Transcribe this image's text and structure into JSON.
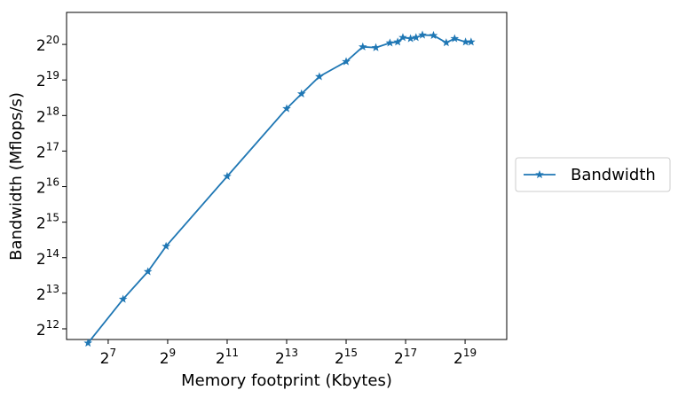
{
  "chart_data": {
    "type": "line",
    "xlabel": "Memory footprint (Kbytes)",
    "ylabel": "Bandwidth (Mflops/s)",
    "xscale": "log2",
    "yscale": "log2",
    "xlim_exp": [
      5.6,
      20.4
    ],
    "ylim_exp": [
      11.7,
      20.9
    ],
    "x_ticks": [
      {
        "base": "2",
        "exp": "7"
      },
      {
        "base": "2",
        "exp": "9"
      },
      {
        "base": "2",
        "exp": "11"
      },
      {
        "base": "2",
        "exp": "13"
      },
      {
        "base": "2",
        "exp": "15"
      },
      {
        "base": "2",
        "exp": "17"
      },
      {
        "base": "2",
        "exp": "19"
      }
    ],
    "y_ticks": [
      {
        "base": "2",
        "exp": "12"
      },
      {
        "base": "2",
        "exp": "13"
      },
      {
        "base": "2",
        "exp": "14"
      },
      {
        "base": "2",
        "exp": "15"
      },
      {
        "base": "2",
        "exp": "16"
      },
      {
        "base": "2",
        "exp": "17"
      },
      {
        "base": "2",
        "exp": "18"
      },
      {
        "base": "2",
        "exp": "19"
      },
      {
        "base": "2",
        "exp": "20"
      }
    ],
    "legend_position": "right-outside",
    "grid": false,
    "series": [
      {
        "name": "Bandwidth",
        "color": "#1f77b4",
        "marker": "star",
        "x": [
          80,
          181,
          323,
          493,
          2048,
          8192,
          11585,
          17560,
          32768,
          48300,
          65536,
          91000,
          109000,
          123000,
          147000,
          167000,
          194000,
          251000,
          338000,
          411000,
          530000,
          603000
        ],
        "y": [
          3104,
          7300,
          12500,
          20480,
          80000,
          300000,
          400000,
          560000,
          750000,
          1000000,
          985000,
          1080000,
          1100000,
          1200000,
          1175000,
          1200000,
          1260000,
          1250000,
          1085000,
          1175000,
          1100000,
          1100000
        ]
      }
    ]
  }
}
